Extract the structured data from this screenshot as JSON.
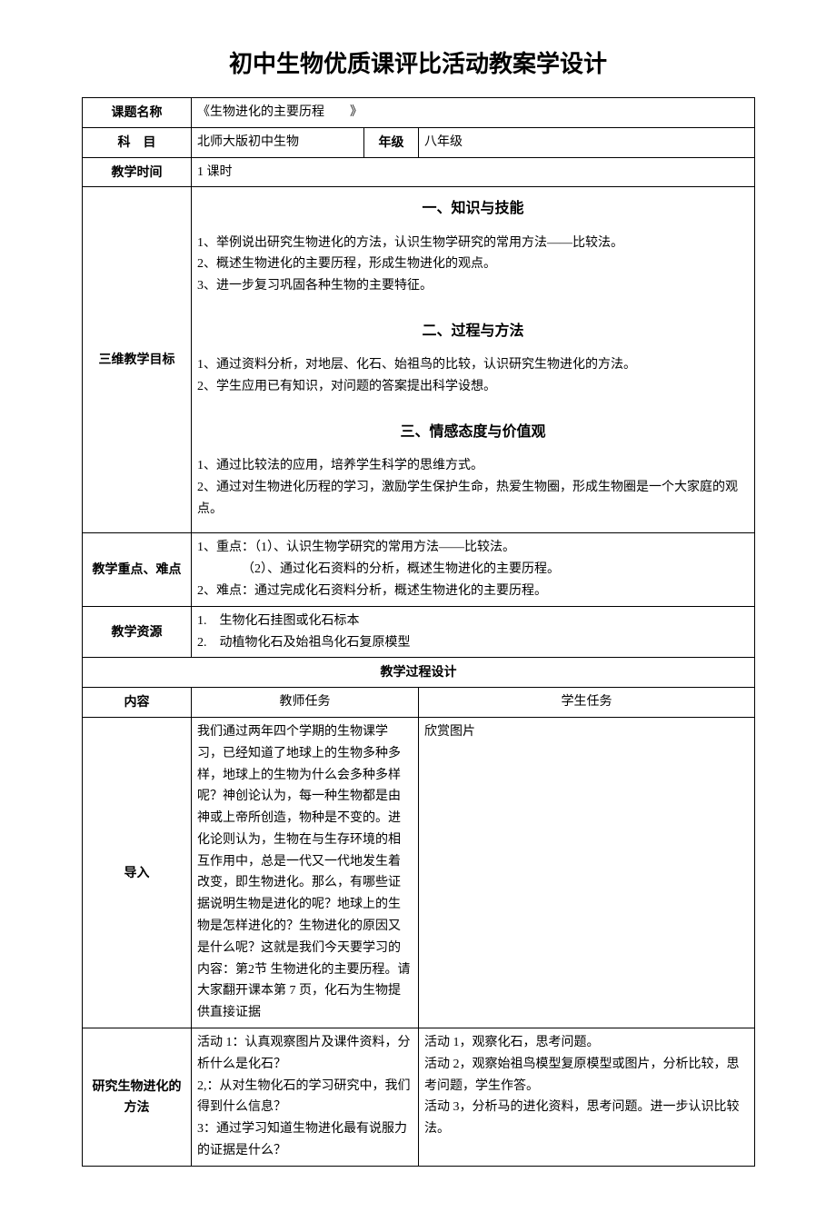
{
  "title": "初中生物优质课评比活动教案学设计",
  "labels": {
    "topic": "课题名称",
    "subject": "科　目",
    "grade": "年级",
    "time": "教学时间",
    "goals": "三维教学目标",
    "focus": "教学重点、难点",
    "resources": "教学资源",
    "process": "教学过程设计",
    "content": "内容",
    "teacher_task": "教师任务",
    "student_task": "学生任务",
    "intro": "导入",
    "methods": "研究生物进化的方法"
  },
  "topic_value": "《生物进化的主要历程　　》",
  "subject_value": "北师大版初中生物",
  "grade_value": "八年级",
  "time_value": "1 课时",
  "sections": {
    "s1_title": "一、知识与技能",
    "s1_l1": "1、举例说出研究生物进化的方法，认识生物学研究的常用方法——比较法。",
    "s1_l2": "2、概述生物进化的主要历程，形成生物进化的观点。",
    "s1_l3": "3、进一步复习巩固各种生物的主要特征。",
    "s2_title": "二、过程与方法",
    "s2_l1": "1、通过资料分析，对地层、化石、始祖鸟的比较，认识研究生物进化的方法。",
    "s2_l2": "2、学生应用已有知识，对问题的答案提出科学设想。",
    "s3_title": "三、情感态度与价值观",
    "s3_l1": "1、通过比较法的应用，培养学生科学的思维方式。",
    "s3_l2": "2、通过对生物进化历程的学习，激励学生保护生命，热爱生物圈，形成生物圈是一个大家庭的观点。"
  },
  "focus": {
    "l1": "1、重点：（1）、认识生物学研究的常用方法——比较法。",
    "l2": "　　　　（2）、通过化石资料的分析，概述生物进化的主要历程。",
    "l3": "2、难点：通过完成化石资料分析，概述生物进化的主要历程。"
  },
  "resources": {
    "l1": "1.　生物化石挂图或化石标本",
    "l2": "2.　动植物化石及始祖鸟化石复原模型"
  },
  "intro_teacher": "我们通过两年四个学期的生物课学习，已经知道了地球上的生物多种多样，地球上的生物为什么会多种多样呢？神创论认为，每一种生物都是由神或上帝所创造，物种是不变的。进化论则认为，生物在与生存环境的相互作用中，总是一代又一代地发生着改变，即生物进化。那么，有哪些证据说明生物是进化的呢？地球上的生物是怎样进化的？生物进化的原因又是什么呢？这就是我们今天要学习的内容：第2节 生物进化的主要历程。请大家翻开课本第 7 页，化石为生物提供直接证据",
  "intro_student": "欣赏图片",
  "methods_teacher": {
    "l1": "活动 1：认真观察图片及课件资料，分析什么是化石？",
    "l2": "2,：从对生物化石的学习研究中，我们得到什么信息？",
    "l3": "3：通过学习知道生物进化最有说服力的证据是什么？"
  },
  "methods_student": {
    "l1": "活动 1，观察化石，思考问题。",
    "l2": "活动 2，观察始祖鸟模型复原模型或图片，分析比较，思考问题，学生作答。",
    "l3": "活动 3，分析马的进化资料，思考问题。进一步认识比较法。"
  },
  "style": {
    "border_color": "#000000",
    "background": "#ffffff",
    "title_fontsize": 26,
    "body_fontsize": 14,
    "heading_fontsize": 16
  }
}
